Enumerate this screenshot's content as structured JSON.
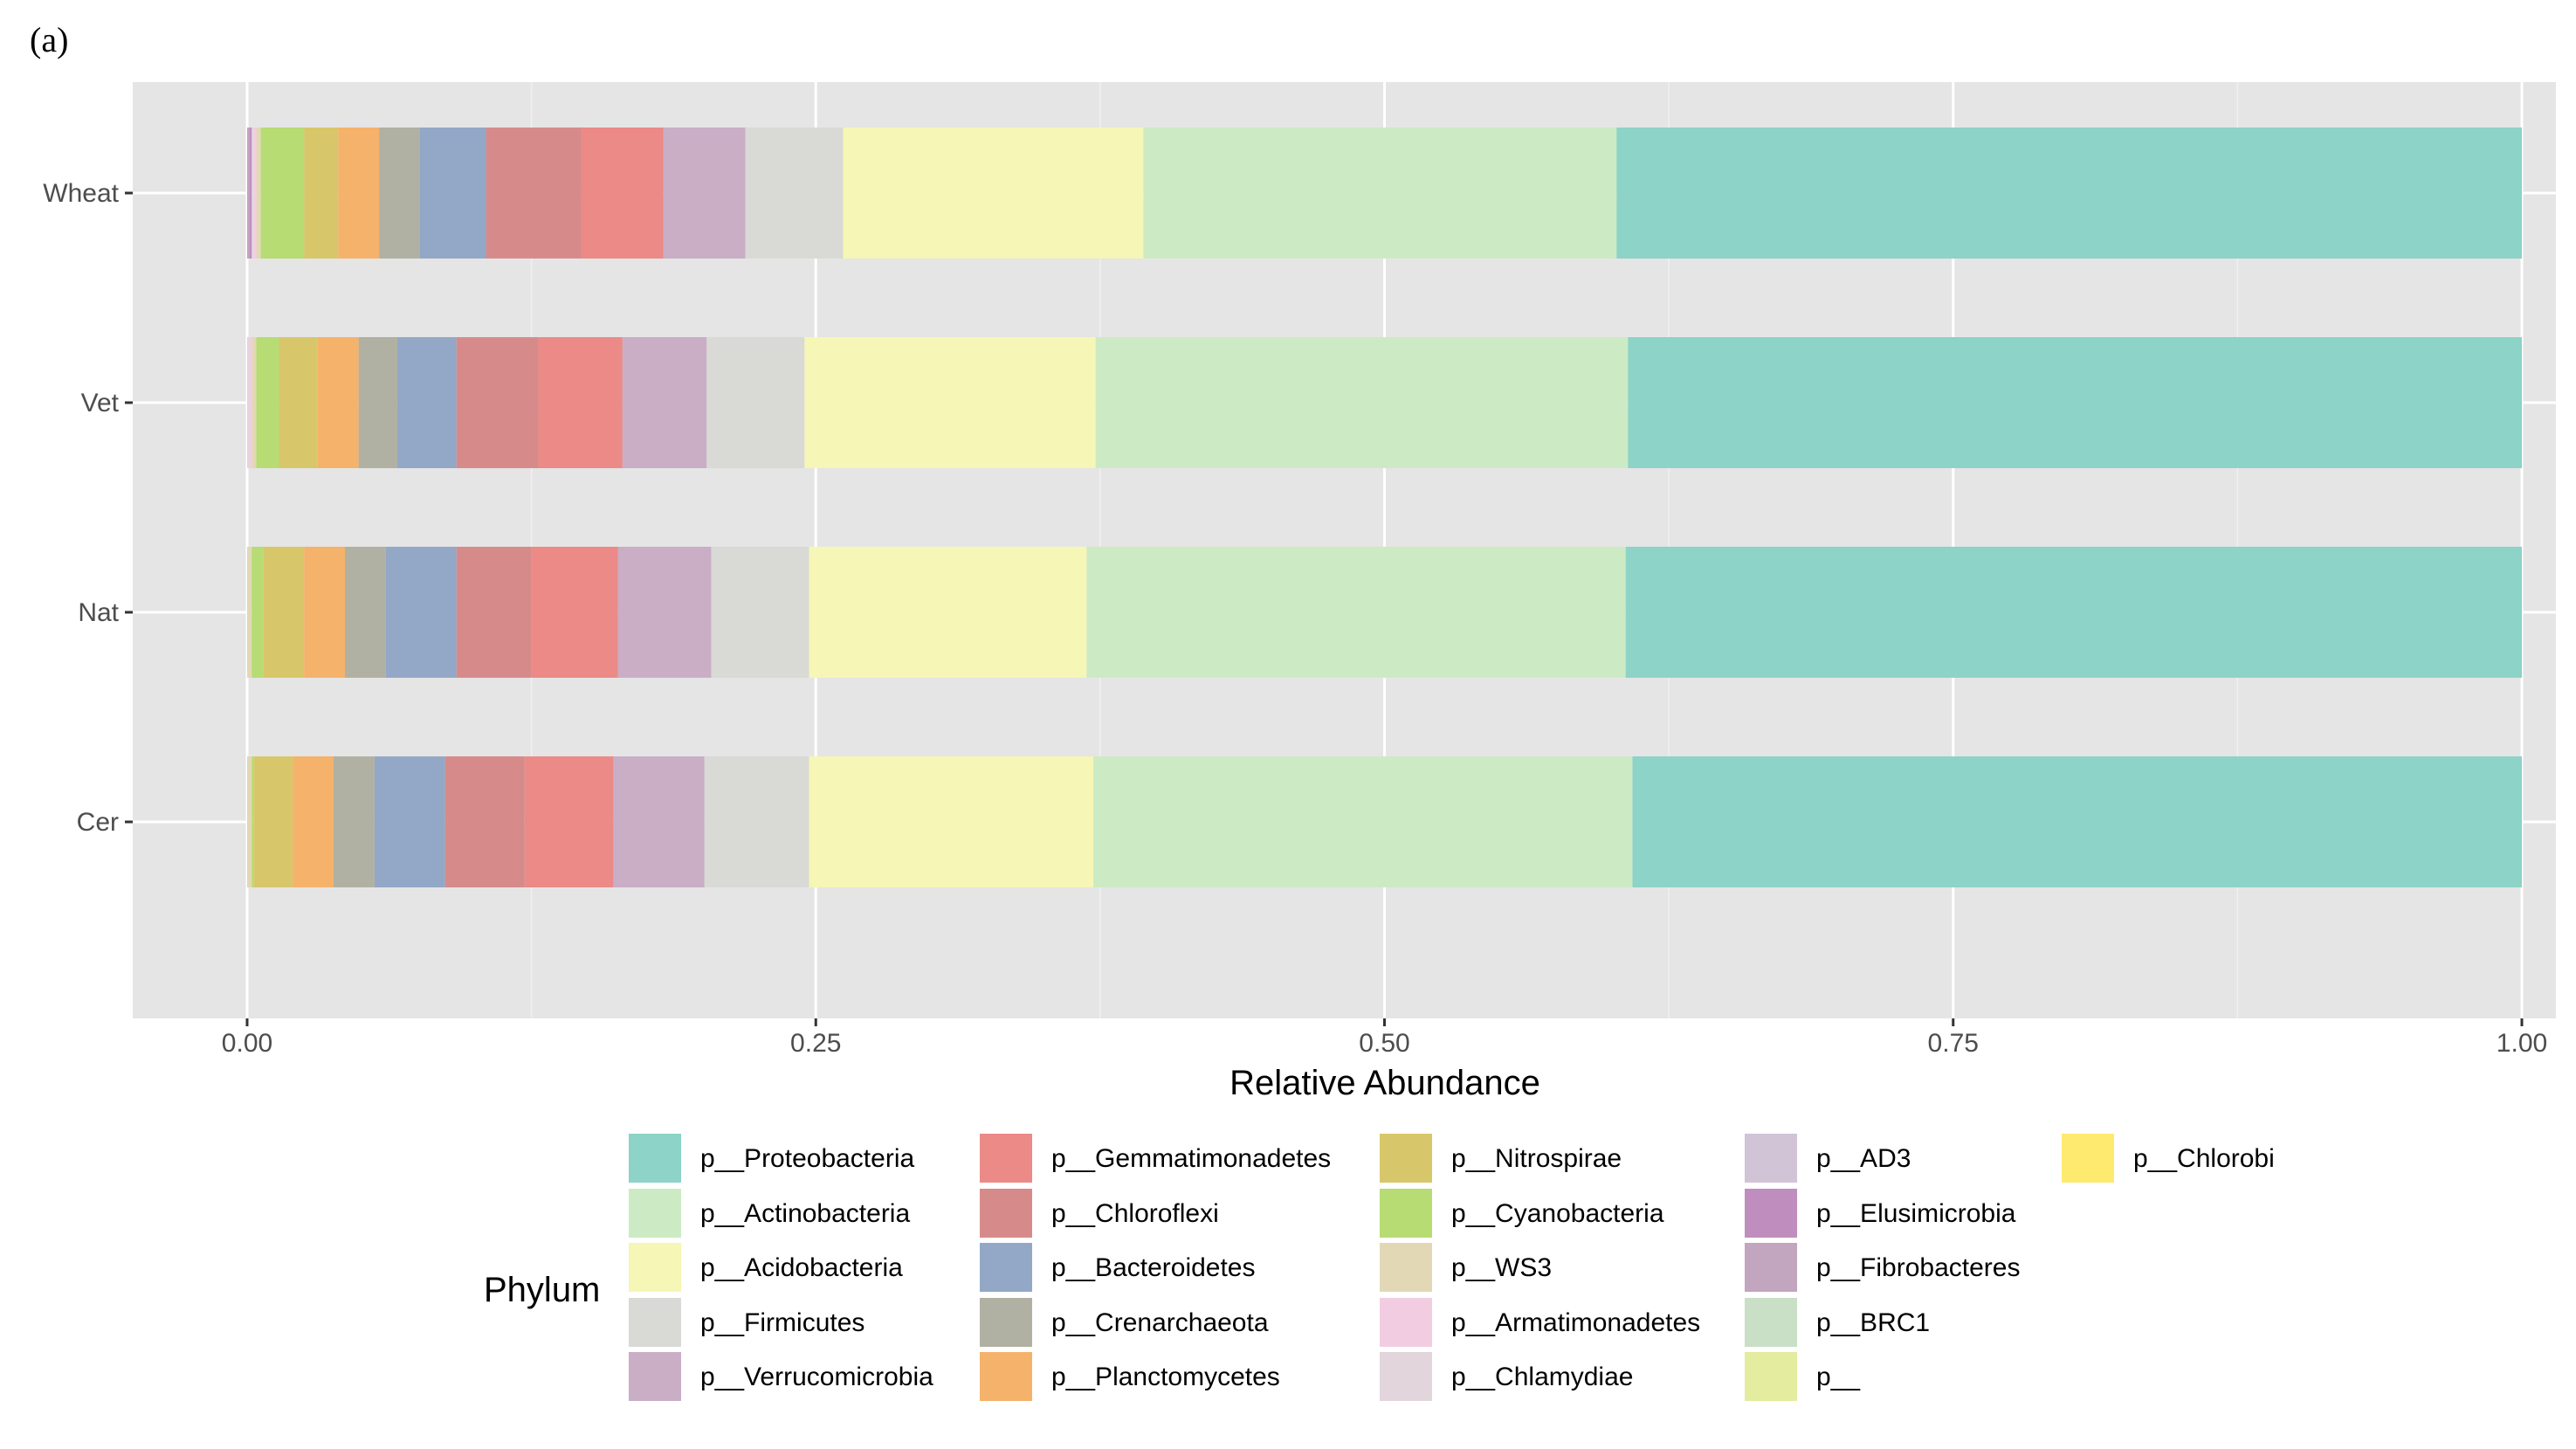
{
  "figure": {
    "panel_label": "(a)"
  },
  "chart_data": {
    "type": "bar",
    "orientation": "horizontal",
    "stacked": true,
    "xlabel": "Relative Abundance",
    "ylabel": "",
    "xlim": [
      0,
      1
    ],
    "xticks": [
      "0.00",
      "0.25",
      "0.50",
      "0.75",
      "1.00"
    ],
    "categories": [
      "Wheat",
      "Vet",
      "Nat",
      "Cer"
    ],
    "grid": true,
    "legend_title": "Phylum",
    "legend_position": "bottom",
    "series": [
      {
        "name": "p__Proteobacteria",
        "color": "#8dd3c7",
        "values": [
          0.398,
          0.393,
          0.394,
          0.391
        ]
      },
      {
        "name": "p__Actinobacteria",
        "color": "#ccebc5",
        "values": [
          0.208,
          0.234,
          0.237,
          0.237
        ]
      },
      {
        "name": "p__Acidobacteria",
        "color": "#f6f6b6",
        "values": [
          0.132,
          0.128,
          0.122,
          0.125
        ]
      },
      {
        "name": "p__Firmicutes",
        "color": "#d9d9d5",
        "values": [
          0.043,
          0.043,
          0.043,
          0.046
        ]
      },
      {
        "name": "p__Verrucomicrobia",
        "color": "#c9aec6",
        "values": [
          0.036,
          0.037,
          0.041,
          0.04
        ]
      },
      {
        "name": "p__Gemmatimonadetes",
        "color": "#eb8a86",
        "values": [
          0.036,
          0.037,
          0.038,
          0.039
        ]
      },
      {
        "name": "p__Chloroflexi",
        "color": "#d68b8a",
        "values": [
          0.042,
          0.036,
          0.033,
          0.035
        ]
      },
      {
        "name": "p__Bacteroidetes",
        "color": "#93a8c6",
        "values": [
          0.029,
          0.026,
          0.031,
          0.031
        ]
      },
      {
        "name": "p__Crenarchaeota",
        "color": "#b0b1a2",
        "values": [
          0.018,
          0.017,
          0.018,
          0.018
        ]
      },
      {
        "name": "p__Planctomycetes",
        "color": "#f5b26b",
        "values": [
          0.018,
          0.018,
          0.018,
          0.018
        ]
      },
      {
        "name": "p__Nitrospirae",
        "color": "#d8c76a",
        "values": [
          0.015,
          0.017,
          0.018,
          0.017
        ]
      },
      {
        "name": "p__Cyanobacteria",
        "color": "#b6dc73",
        "values": [
          0.019,
          0.01,
          0.005,
          0.001
        ]
      },
      {
        "name": "p__WS3",
        "color": "#e2d8b6",
        "values": [
          0.002,
          0.002,
          0.002,
          0.002
        ]
      },
      {
        "name": "p__Armatimonadetes",
        "color": "#f2cde2",
        "values": [
          0.001,
          0.001,
          0.001,
          0.001
        ]
      },
      {
        "name": "p__Chlamydiae",
        "color": "#e2d5dc",
        "values": [
          0.001,
          0.001,
          0.001,
          0.001
        ]
      },
      {
        "name": "p__AD3",
        "color": "#d1c4d6",
        "values": [
          0.0,
          0.0,
          0.0,
          0.0
        ]
      },
      {
        "name": "p__Elusimicrobia",
        "color": "#bf8ebe",
        "values": [
          0.001,
          0.0,
          0.001,
          0.0
        ]
      },
      {
        "name": "p__Fibrobacteres",
        "color": "#c2a5bf",
        "values": [
          0.001,
          0.0,
          0.001,
          0.001
        ]
      },
      {
        "name": "p__BRC1",
        "color": "#c9dfc6",
        "values": [
          0.0,
          0.0,
          0.0,
          0.0
        ]
      },
      {
        "name": "p__",
        "color": "#e3ec9f",
        "values": [
          0.0,
          0.0,
          0.0,
          0.0
        ]
      },
      {
        "name": "p__Chlorobi",
        "color": "#fdea6f",
        "values": [
          0.0,
          0.0,
          0.0,
          0.0
        ]
      }
    ],
    "colors": {
      "panel_background": "#e5e5e5",
      "grid_major": "#ffffff",
      "grid_minor": "#f0f0f0"
    }
  }
}
